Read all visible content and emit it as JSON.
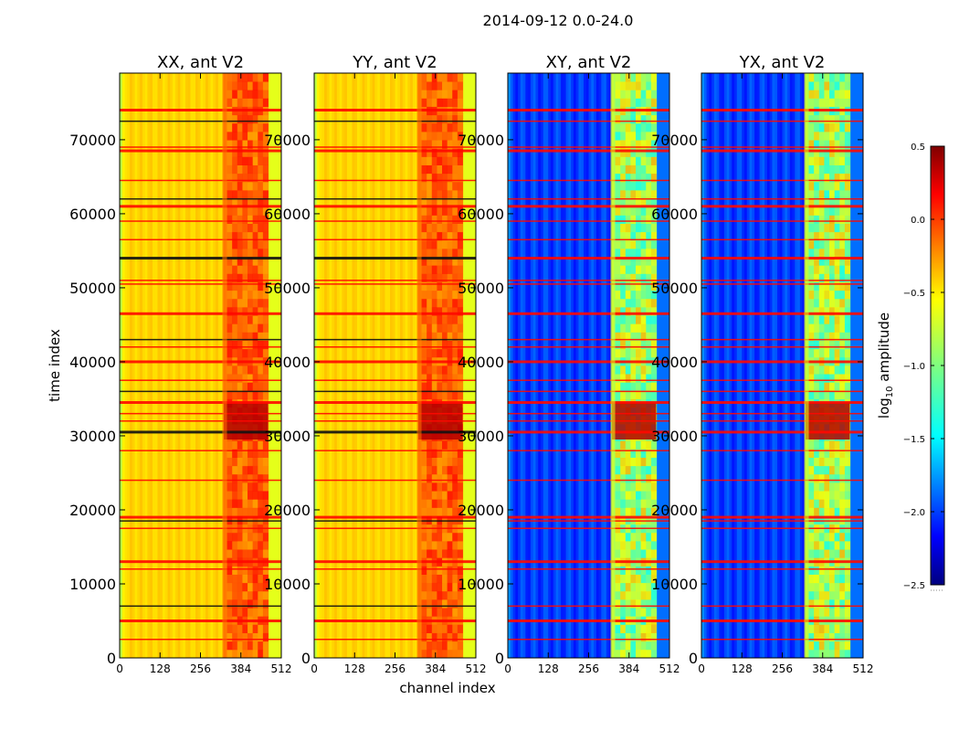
{
  "chart_data": {
    "type": "heatmap",
    "title": "2014-09-12 0.0-24.0",
    "xlabel": "channel index",
    "ylabel": "time index",
    "xlim": [
      0,
      512
    ],
    "ylim": [
      0,
      79000
    ],
    "x_ticks": [
      0,
      128,
      256,
      384,
      512
    ],
    "y_ticks": [
      0,
      10000,
      20000,
      30000,
      40000,
      50000,
      60000,
      70000
    ],
    "panels": [
      {
        "title": "XX, ant V2",
        "style": "auto"
      },
      {
        "title": "YY, ant V2",
        "style": "auto"
      },
      {
        "title": "XY, ant V2",
        "style": "cross"
      },
      {
        "title": "YX, ant V2",
        "style": "cross"
      }
    ],
    "colorbar": {
      "label": "log10 amplitude",
      "label_main": "log",
      "label_sub": "10",
      "label_rest": " amplitude",
      "range": [
        -2.5,
        0.5
      ],
      "ticks": [
        0.5,
        0.0,
        -0.5,
        -1.0,
        -1.5,
        -2.0,
        -2.5
      ],
      "tick_labels": [
        "0.5",
        "0.0",
        "−0.5",
        "−1.0",
        "−1.5",
        "−2.0",
        "−2.5"
      ],
      "colormap": "jet"
    },
    "rfi_band_channels": [
      325,
      340
    ],
    "high_activity_channel_range": [
      340,
      470
    ],
    "storm_time_range": [
      29500,
      34500
    ],
    "flagged_time_rows": [
      74000,
      72500,
      69000,
      68500,
      64500,
      62000,
      61000,
      59000,
      56500,
      54000,
      51000,
      50500,
      46500,
      43000,
      42000,
      40000,
      37500,
      36000,
      34500,
      33000,
      32000,
      30500,
      28000,
      24000,
      19000,
      18500,
      17500,
      13000,
      12000,
      7000,
      5000,
      2500
    ]
  }
}
